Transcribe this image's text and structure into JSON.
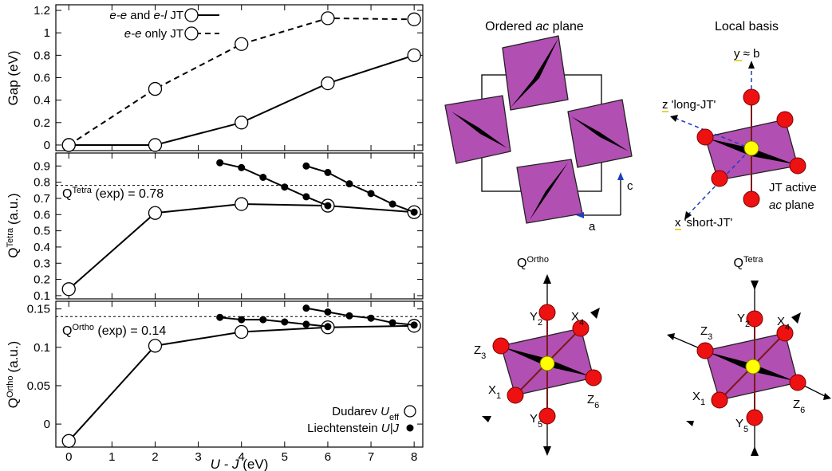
{
  "chart_data": [
    {
      "type": "line",
      "ylabel": "Gap (eV)",
      "ylim": [
        -0.05,
        1.25
      ],
      "yticks": [
        "0",
        "0.2",
        "0.4",
        "0.6",
        "0.8",
        "1",
        "1.2"
      ],
      "ytick_values": [
        0,
        0.2,
        0.4,
        0.6,
        0.8,
        1.0,
        1.2
      ],
      "legend_position": "top-left",
      "series": [
        {
          "name": "e-e and e-l JT",
          "style": "solid-open",
          "x": [
            0,
            2,
            4,
            6,
            8
          ],
          "y": [
            0.0,
            0.0,
            0.2,
            0.55,
            0.8
          ]
        },
        {
          "name": "e-e only JT",
          "style": "dashed-open",
          "x": [
            0,
            2,
            4,
            6,
            8
          ],
          "y": [
            0.0,
            0.5,
            0.9,
            1.13,
            1.12
          ]
        }
      ],
      "legend_parts": [
        {
          "ital1": "e-e",
          "mid": " and ",
          "ital2": "e-l",
          "tail": " JT"
        },
        {
          "ital1": "e-e",
          "mid": " only JT",
          "ital2": "",
          "tail": ""
        }
      ]
    },
    {
      "type": "line",
      "ylabel_main": "Q",
      "ylabel_sup": "Tetra",
      "ylabel_unit": "(a.u.)",
      "ylim": [
        0.08,
        0.98
      ],
      "yticks": [
        "0.1",
        "0.2",
        "0.3",
        "0.4",
        "0.5",
        "0.6",
        "0.7",
        "0.8",
        "0.9"
      ],
      "ytick_values": [
        0.1,
        0.2,
        0.3,
        0.4,
        0.5,
        0.6,
        0.7,
        0.8,
        0.9
      ],
      "exp_value": 0.78,
      "exp_label_main": "Q",
      "exp_label_sup": "Tetra",
      "exp_label_tail": " (exp) = 0.78",
      "series": [
        {
          "name": "Dudarev",
          "style": "solid-open",
          "x": [
            0,
            2,
            4,
            6,
            8
          ],
          "y": [
            0.14,
            0.61,
            0.665,
            0.655,
            0.615
          ]
        },
        {
          "name": "Liechtenstein J1",
          "style": "solid-filled",
          "x": [
            3.5,
            4.0,
            4.5,
            5.0,
            5.5,
            6.0
          ],
          "y": [
            0.92,
            0.89,
            0.83,
            0.77,
            0.71,
            0.655
          ]
        },
        {
          "name": "Liechtenstein J2",
          "style": "solid-filled",
          "x": [
            5.5,
            6.0,
            6.5,
            7.0,
            7.5,
            8.0
          ],
          "y": [
            0.9,
            0.86,
            0.79,
            0.73,
            0.665,
            0.615
          ]
        }
      ]
    },
    {
      "type": "line",
      "ylabel_main": "Q",
      "ylabel_sup": "Ortho",
      "ylabel_unit": "(a.u.)",
      "xlabel_main": "U - J",
      "xlabel_unit": " (eV)",
      "ylim": [
        -0.03,
        0.16
      ],
      "xlim": [
        -0.3,
        8.2
      ],
      "xticks": [
        "0",
        "1",
        "2",
        "3",
        "4",
        "5",
        "6",
        "7",
        "8"
      ],
      "xtick_values": [
        0,
        1,
        2,
        3,
        4,
        5,
        6,
        7,
        8
      ],
      "yticks": [
        "0",
        "0.05",
        "0.1",
        "0.15"
      ],
      "ytick_values": [
        0,
        0.05,
        0.1,
        0.15
      ],
      "exp_value": 0.14,
      "exp_label_main": "Q",
      "exp_label_sup": "Ortho",
      "exp_label_tail": " (exp) = 0.14",
      "series": [
        {
          "name": "Dudarev",
          "style": "solid-open",
          "x": [
            0,
            2,
            4,
            6,
            8
          ],
          "y": [
            -0.022,
            0.102,
            0.12,
            0.126,
            0.128
          ]
        },
        {
          "name": "Liechtenstein J1",
          "style": "solid-filled",
          "x": [
            3.5,
            4.0,
            4.5,
            5.0,
            5.5,
            6.0
          ],
          "y": [
            0.139,
            0.136,
            0.136,
            0.133,
            0.13,
            0.127
          ]
        },
        {
          "name": "Liechtenstein J2",
          "style": "solid-filled",
          "x": [
            5.5,
            6.0,
            6.5,
            7.0,
            7.5,
            8.0
          ],
          "y": [
            0.151,
            0.146,
            0.141,
            0.138,
            0.132,
            0.129
          ]
        }
      ],
      "legend_parts": [
        {
          "pre": "Dudarev ",
          "ital": "U",
          "sub": "eff",
          "tail": ""
        },
        {
          "pre": "Liechtenstein ",
          "ital": "U",
          "sub": "",
          "tail": "|J"
        }
      ]
    }
  ],
  "diagrams": {
    "ac_plane": {
      "title_pre": "Ordered ",
      "title_ital": "ac",
      "title_post": " plane",
      "axis_c": "c",
      "axis_a": "a"
    },
    "local_basis": {
      "title": "Local basis",
      "y_label": "y ≈ b",
      "z_label": "z 'long-JT'",
      "x_label": "x 'short-JT'",
      "jt_line1": "JT active",
      "jt_line2_ital": "ac",
      "jt_line2_tail": " plane"
    },
    "q_ortho": {
      "label_main": "Q",
      "label_sup": "Ortho",
      "atoms": [
        {
          "main": "Y",
          "sub": "2"
        },
        {
          "main": "X",
          "sub": "4"
        },
        {
          "main": "Z",
          "sub": "3"
        },
        {
          "main": "X",
          "sub": "1"
        },
        {
          "main": "Z",
          "sub": "6"
        },
        {
          "main": "Y",
          "sub": "5"
        }
      ]
    },
    "q_tetra": {
      "label_main": "Q",
      "label_sup": "Tetra",
      "atoms": [
        {
          "main": "Y",
          "sub": "2"
        },
        {
          "main": "X",
          "sub": "4"
        },
        {
          "main": "Z",
          "sub": "3"
        },
        {
          "main": "X",
          "sub": "1"
        },
        {
          "main": "Z",
          "sub": "6"
        },
        {
          "main": "Y",
          "sub": "5"
        }
      ]
    }
  }
}
